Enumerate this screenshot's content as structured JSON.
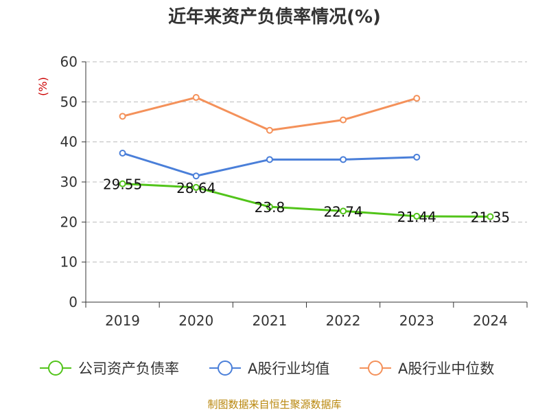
{
  "title": "近年来资产负债率情况(%)",
  "source": "制图数据来自恒生聚源数据库",
  "chart_data": {
    "type": "line",
    "title": "近年来资产负债率情况(%)",
    "ylabel": "(%)",
    "ylim": [
      0,
      60
    ],
    "yticks": [
      0,
      10,
      20,
      30,
      40,
      50,
      60
    ],
    "categories": [
      "2019",
      "2020",
      "2021",
      "2022",
      "2023",
      "2024"
    ],
    "grid": true,
    "legend_position": "bottom",
    "series": [
      {
        "name": "公司资产负债率",
        "color": "#52c41a",
        "values": [
          29.55,
          28.64,
          23.8,
          22.74,
          21.44,
          21.35
        ],
        "labels": [
          "29.55",
          "28.64",
          "23.8",
          "22.74",
          "21.44",
          "21.35"
        ]
      },
      {
        "name": "A股行业均值",
        "color": "#4a7fd9",
        "values": [
          37.2,
          31.5,
          35.6,
          35.6,
          36.2,
          null
        ]
      },
      {
        "name": "A股行业中位数",
        "color": "#f4915a",
        "values": [
          46.4,
          51.1,
          42.9,
          45.5,
          50.9,
          null
        ]
      }
    ]
  }
}
